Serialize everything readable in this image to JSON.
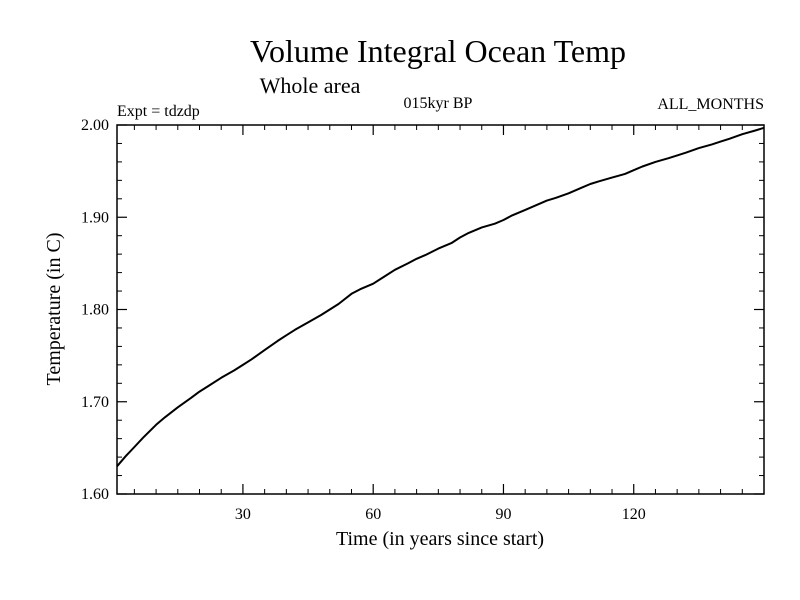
{
  "chart_data": {
    "type": "line",
    "title": "Volume Integral Ocean Temp",
    "subtitle": "Whole area",
    "experiment_label": "Expt = tdzdp",
    "period_label": "015kyr BP",
    "months_label": "ALL_MONTHS",
    "xlabel": "Time (in years since start)",
    "ylabel": "Temperature (in C)",
    "xlim": [
      1,
      150
    ],
    "ylim": [
      1.6,
      2.0
    ],
    "x_ticks": [
      30,
      60,
      90,
      120
    ],
    "x_tick_labels": [
      "30",
      "60",
      "90",
      "120"
    ],
    "y_ticks": [
      1.6,
      1.7,
      1.8,
      1.9,
      2.0
    ],
    "y_tick_labels": [
      "1.60",
      "1.70",
      "1.80",
      "1.90",
      "2.00"
    ],
    "grid": false,
    "series": [
      {
        "name": "Volume Integral Ocean Temp",
        "x": [
          1,
          3,
          5,
          7,
          10,
          12,
          15,
          18,
          20,
          22,
          25,
          28,
          30,
          32,
          35,
          38,
          40,
          42,
          45,
          48,
          50,
          52,
          55,
          57,
          60,
          62,
          65,
          68,
          70,
          72,
          75,
          78,
          80,
          82,
          85,
          88,
          90,
          92,
          95,
          98,
          100,
          102,
          105,
          108,
          110,
          112,
          115,
          118,
          120,
          122,
          125,
          128,
          130,
          132,
          135,
          138,
          140,
          142,
          145,
          148,
          150
        ],
        "values": [
          1.63,
          1.641,
          1.651,
          1.661,
          1.675,
          1.683,
          1.694,
          1.704,
          1.711,
          1.717,
          1.726,
          1.734,
          1.74,
          1.746,
          1.756,
          1.766,
          1.772,
          1.778,
          1.786,
          1.794,
          1.8,
          1.806,
          1.817,
          1.822,
          1.828,
          1.834,
          1.843,
          1.85,
          1.855,
          1.859,
          1.866,
          1.872,
          1.878,
          1.883,
          1.889,
          1.893,
          1.897,
          1.902,
          1.908,
          1.914,
          1.918,
          1.921,
          1.926,
          1.932,
          1.936,
          1.939,
          1.943,
          1.947,
          1.951,
          1.955,
          1.96,
          1.964,
          1.967,
          1.97,
          1.975,
          1.979,
          1.982,
          1.985,
          1.99,
          1.994,
          1.997
        ]
      }
    ]
  }
}
